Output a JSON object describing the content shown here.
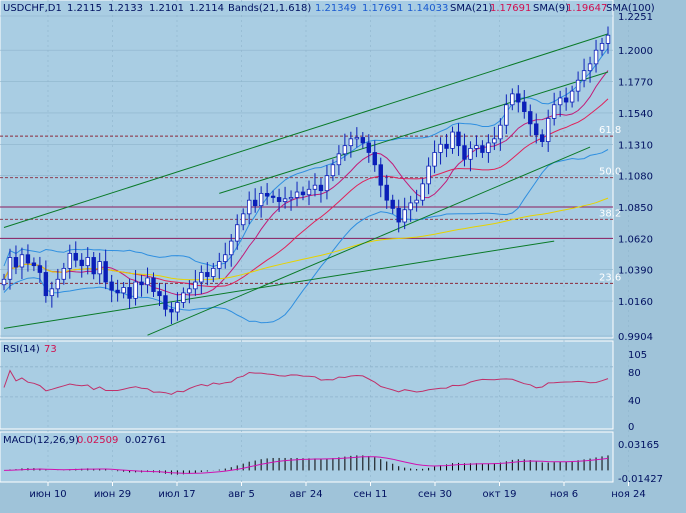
{
  "colors": {
    "bg": "#9fc3d9",
    "panel": "#a9cde3",
    "grid": "#8fb4cc",
    "axis": "#ffffff",
    "candle": "#0b1fb8",
    "bands": "#2f8fe0",
    "sma21": "#e0225a",
    "sma9": "#c21a78",
    "sma100": "#e6d200",
    "trend": "#0a7a28",
    "fib": "#8a2a3c",
    "level": "#8a1a5e",
    "rsi": "#c0306a",
    "macd_hist": "#000000",
    "macd_signal": "#d010b0",
    "text_main": "#001060",
    "text_accent_red": "#d01050",
    "text_accent_blue": "#1a5ad0"
  },
  "header": {
    "symbol": "USDCHF,D1",
    "ohlc": [
      "1.2115",
      "1.2133",
      "1.2101",
      "1.2114"
    ],
    "bands_label": "Bands(21,1.618)",
    "bands_values": [
      "1.21349",
      "1.17691",
      "1.14033"
    ],
    "sma21_label": "SMA(21)",
    "sma21_value": "1.17691",
    "sma9_label": "SMA(9)",
    "sma9_value": "1.19647",
    "sma100_label": "SMA(100)"
  },
  "rsi_panel": {
    "label": "RSI(14)",
    "value": "73",
    "ticks": [
      "105",
      "80",
      "40",
      "0"
    ]
  },
  "macd_panel": {
    "label": "MACD(12,26,9)",
    "value1": "0.02509",
    "value2": "0.02761",
    "ticks": [
      "0.03165",
      "-0.01427"
    ]
  },
  "chart_data": {
    "type": "candlestick",
    "y_ticks": [
      "1.2251",
      "1.2000",
      "1.1770",
      "1.1540",
      "1.1310",
      "1.1080",
      "1.0850",
      "1.0620",
      "1.0390",
      "1.0160",
      "0.9904"
    ],
    "ylim": [
      0.9904,
      1.2251
    ],
    "x_ticks": [
      "июн 10",
      "июн 29",
      "июл 17",
      "авг 5",
      "авг 24",
      "сен 11",
      "сен 30",
      "окт 19",
      "ноя 6",
      "ноя 24"
    ],
    "fib_levels": [
      {
        "label": "61.8",
        "value": 1.137
      },
      {
        "label": "50.0",
        "value": 1.1065
      },
      {
        "label": "38.2",
        "value": 1.076
      },
      {
        "label": "23.6",
        "value": 1.029
      }
    ],
    "level_lines": [
      1.085,
      1.062
    ],
    "trend_lines": [
      {
        "x0": 0,
        "y0": 1.07,
        "x1": 101,
        "y1": 1.212
      },
      {
        "x0": 36,
        "y0": 1.095,
        "x1": 101,
        "y1": 1.184
      },
      {
        "x0": 24,
        "y0": 0.991,
        "x1": 98,
        "y1": 1.129
      },
      {
        "x0": 0,
        "y0": 0.996,
        "x1": 92,
        "y1": 1.06
      }
    ],
    "close": [
      1.032,
      1.048,
      1.041,
      1.05,
      1.044,
      1.042,
      1.037,
      1.02,
      1.025,
      1.032,
      1.04,
      1.051,
      1.046,
      1.042,
      1.048,
      1.036,
      1.045,
      1.03,
      1.024,
      1.022,
      1.026,
      1.018,
      1.03,
      1.028,
      1.033,
      1.023,
      1.02,
      1.01,
      1.008,
      1.015,
      1.022,
      1.025,
      1.03,
      1.037,
      1.034,
      1.04,
      1.045,
      1.05,
      1.06,
      1.072,
      1.08,
      1.09,
      1.086,
      1.095,
      1.093,
      1.092,
      1.089,
      1.091,
      1.092,
      1.096,
      1.094,
      1.098,
      1.101,
      1.097,
      1.108,
      1.116,
      1.124,
      1.13,
      1.135,
      1.136,
      1.132,
      1.125,
      1.116,
      1.101,
      1.09,
      1.084,
      1.074,
      1.083,
      1.088,
      1.09,
      1.102,
      1.115,
      1.125,
      1.131,
      1.128,
      1.14,
      1.13,
      1.12,
      1.128,
      1.13,
      1.125,
      1.132,
      1.135,
      1.145,
      1.16,
      1.168,
      1.162,
      1.155,
      1.146,
      1.138,
      1.133,
      1.15,
      1.16,
      1.165,
      1.162,
      1.17,
      1.178,
      1.185,
      1.19,
      1.2,
      1.205,
      1.211
    ]
  }
}
